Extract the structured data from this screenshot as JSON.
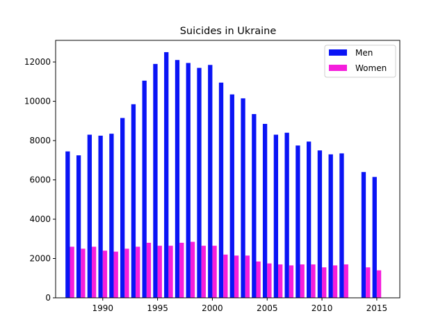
{
  "chart_data": {
    "type": "bar",
    "title": "Suicides in Ukraine",
    "xlabel": "",
    "ylabel": "",
    "x": [
      1987,
      1988,
      1989,
      1990,
      1991,
      1992,
      1993,
      1994,
      1995,
      1996,
      1997,
      1998,
      1999,
      2000,
      2001,
      2002,
      2003,
      2004,
      2005,
      2006,
      2007,
      2008,
      2009,
      2010,
      2011,
      2012,
      2014,
      2015
    ],
    "series": [
      {
        "name": "Men",
        "color": "#0a14f5",
        "values": [
          7450,
          7250,
          8300,
          8250,
          8350,
          9150,
          9850,
          11050,
          11900,
          12500,
          12100,
          11950,
          11700,
          11850,
          10950,
          10350,
          10150,
          9350,
          8850,
          8300,
          8400,
          7750,
          7950,
          7500,
          7300,
          7350,
          6400,
          6150
        ]
      },
      {
        "name": "Women",
        "color": "#f51edc",
        "values": [
          2600,
          2500,
          2600,
          2400,
          2350,
          2500,
          2600,
          2800,
          2650,
          2650,
          2800,
          2850,
          2650,
          2650,
          2200,
          2150,
          2150,
          1850,
          1750,
          1700,
          1650,
          1700,
          1700,
          1550,
          1650,
          1700,
          1550,
          1400
        ]
      }
    ],
    "xlim": [
      1985.7,
      1017.1
    ],
    "xticks": [
      "1990",
      "1995",
      "2000",
      "2005",
      "2010",
      "2015"
    ],
    "ylim": [
      0,
      13100
    ],
    "yticks": [
      "0",
      "2000",
      "4000",
      "6000",
      "8000",
      "10000",
      "12000"
    ],
    "grid": false,
    "legend": "top-right"
  }
}
